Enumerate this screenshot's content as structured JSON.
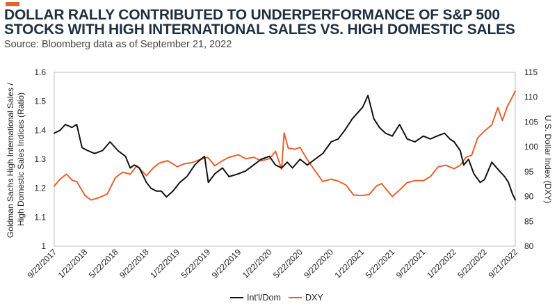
{
  "header": {
    "title": "DOLLAR RALLY CONTRIBUTED TO UNDERPERFORMANCE OF S&P 500 STOCKS WITH HIGH INTERNATIONAL SALES VS. HIGH DOMESTIC SALES",
    "subtitle": "Source: Bloomberg data as of September 21, 2022",
    "accent_color": "#e8612c"
  },
  "chart_data": {
    "type": "line",
    "title": "DOLLAR RALLY CONTRIBUTED TO UNDERPERFORMANCE OF S&P 500 STOCKS WITH HIGH INTERNATIONAL SALES VS. HIGH DOMESTIC SALES",
    "x_tick_labels": [
      "9/22/2017",
      "1/22/2018",
      "5/22/2018",
      "9/22/2018",
      "1/22/2019",
      "5/22/2019",
      "9/22/2019",
      "1/22/2020",
      "5/22/2020",
      "9/22/2020",
      "1/22/2021",
      "5/22/2021",
      "9/22/2021",
      "1/22/2022",
      "5/22/2022",
      "9/21/2022"
    ],
    "x_range": [
      "9/22/2017",
      "9/21/2022"
    ],
    "y_left": {
      "label": "Goldman Sachs High International Sales / High Domestic Sales Indices (Ratio)",
      "label_lines": [
        "Goldman Sachs High International Sales /",
        "High Domestic Sales Indices (Ratio)"
      ],
      "range": [
        1,
        1.6
      ],
      "ticks": [
        "1",
        "1.1",
        "1.2",
        "1.3",
        "1.4",
        "1.5",
        "1.6"
      ]
    },
    "y_right": {
      "label": "U.S. Dollar Index (DXY)",
      "range": [
        80,
        115
      ],
      "ticks": [
        "80",
        "85",
        "90",
        "95",
        "100",
        "105",
        "110",
        "115"
      ]
    },
    "grid": false,
    "legend_position": "bottom-center",
    "series": [
      {
        "name": "Int'l/Dom",
        "axis": "left",
        "color": "#111111",
        "points": [
          [
            "9/22/2017",
            1.39
          ],
          [
            "10/15/2017",
            1.4
          ],
          [
            "11/5/2017",
            1.42
          ],
          [
            "12/1/2017",
            1.41
          ],
          [
            "12/20/2017",
            1.42
          ],
          [
            "1/10/2018",
            1.34
          ],
          [
            "2/1/2018",
            1.33
          ],
          [
            "3/1/2018",
            1.32
          ],
          [
            "4/1/2018",
            1.33
          ],
          [
            "5/1/2018",
            1.36
          ],
          [
            "6/1/2018",
            1.33
          ],
          [
            "7/1/2018",
            1.31
          ],
          [
            "7/20/2018",
            1.27
          ],
          [
            "8/5/2018",
            1.28
          ],
          [
            "8/25/2018",
            1.27
          ],
          [
            "9/22/2018",
            1.22
          ],
          [
            "10/10/2018",
            1.2
          ],
          [
            "11/1/2018",
            1.19
          ],
          [
            "11/20/2018",
            1.19
          ],
          [
            "12/10/2018",
            1.17
          ],
          [
            "1/5/2019",
            1.19
          ],
          [
            "2/1/2019",
            1.22
          ],
          [
            "3/1/2019",
            1.24
          ],
          [
            "4/1/2019",
            1.28
          ],
          [
            "4/25/2019",
            1.3
          ],
          [
            "5/10/2019",
            1.31
          ],
          [
            "5/25/2019",
            1.22
          ],
          [
            "6/20/2019",
            1.25
          ],
          [
            "7/20/2019",
            1.27
          ],
          [
            "8/15/2019",
            1.24
          ],
          [
            "9/22/2019",
            1.25
          ],
          [
            "10/20/2019",
            1.26
          ],
          [
            "11/20/2019",
            1.28
          ],
          [
            "12/20/2019",
            1.3
          ],
          [
            "1/22/2020",
            1.31
          ],
          [
            "2/15/2020",
            1.28
          ],
          [
            "3/10/2020",
            1.27
          ],
          [
            "4/1/2020",
            1.29
          ],
          [
            "4/22/2020",
            1.27
          ],
          [
            "5/22/2020",
            1.3
          ],
          [
            "6/20/2020",
            1.28
          ],
          [
            "7/20/2020",
            1.3
          ],
          [
            "8/20/2020",
            1.32
          ],
          [
            "9/22/2020",
            1.36
          ],
          [
            "10/20/2020",
            1.37
          ],
          [
            "11/15/2020",
            1.4
          ],
          [
            "12/15/2020",
            1.44
          ],
          [
            "1/5/2021",
            1.46
          ],
          [
            "1/25/2021",
            1.48
          ],
          [
            "2/15/2021",
            1.52
          ],
          [
            "3/10/2021",
            1.44
          ],
          [
            "4/1/2021",
            1.41
          ],
          [
            "4/25/2021",
            1.39
          ],
          [
            "5/22/2021",
            1.38
          ],
          [
            "6/20/2021",
            1.42
          ],
          [
            "7/20/2021",
            1.37
          ],
          [
            "8/20/2021",
            1.36
          ],
          [
            "9/22/2021",
            1.38
          ],
          [
            "10/20/2021",
            1.37
          ],
          [
            "11/15/2021",
            1.38
          ],
          [
            "12/15/2021",
            1.39
          ],
          [
            "1/5/2022",
            1.37
          ],
          [
            "1/22/2022",
            1.36
          ],
          [
            "2/15/2022",
            1.33
          ],
          [
            "3/1/2022",
            1.28
          ],
          [
            "3/20/2022",
            1.3
          ],
          [
            "4/10/2022",
            1.25
          ],
          [
            "5/5/2022",
            1.22
          ],
          [
            "5/22/2022",
            1.23
          ],
          [
            "6/20/2022",
            1.29
          ],
          [
            "7/20/2022",
            1.26
          ],
          [
            "8/10/2022",
            1.24
          ],
          [
            "8/25/2022",
            1.22
          ],
          [
            "9/10/2022",
            1.18
          ],
          [
            "9/21/2022",
            1.16
          ]
        ]
      },
      {
        "name": "DXY",
        "axis": "right",
        "color": "#e8612c",
        "points": [
          [
            "9/22/2017",
            92.1
          ],
          [
            "10/15/2017",
            93.5
          ],
          [
            "11/10/2017",
            94.5
          ],
          [
            "12/1/2017",
            93.3
          ],
          [
            "12/20/2017",
            93.0
          ],
          [
            "1/22/2018",
            90.2
          ],
          [
            "2/15/2018",
            89.3
          ],
          [
            "3/20/2018",
            89.8
          ],
          [
            "4/20/2018",
            90.5
          ],
          [
            "5/22/2018",
            93.8
          ],
          [
            "6/20/2018",
            94.9
          ],
          [
            "7/20/2018",
            94.5
          ],
          [
            "8/15/2018",
            96.2
          ],
          [
            "9/22/2018",
            94.2
          ],
          [
            "10/20/2018",
            95.8
          ],
          [
            "11/15/2018",
            96.8
          ],
          [
            "12/15/2018",
            97.2
          ],
          [
            "1/22/2019",
            96.0
          ],
          [
            "2/20/2019",
            96.6
          ],
          [
            "3/20/2019",
            96.8
          ],
          [
            "4/20/2019",
            97.4
          ],
          [
            "5/22/2019",
            97.9
          ],
          [
            "6/20/2019",
            96.2
          ],
          [
            "7/20/2019",
            97.2
          ],
          [
            "8/15/2019",
            97.9
          ],
          [
            "9/22/2019",
            98.4
          ],
          [
            "10/20/2019",
            97.6
          ],
          [
            "11/20/2019",
            97.9
          ],
          [
            "12/20/2019",
            97.2
          ],
          [
            "1/22/2020",
            97.6
          ],
          [
            "2/15/2020",
            99.1
          ],
          [
            "3/10/2020",
            95.5
          ],
          [
            "3/20/2020",
            102.8
          ],
          [
            "4/5/2020",
            99.8
          ],
          [
            "5/1/2020",
            99.5
          ],
          [
            "5/22/2020",
            99.9
          ],
          [
            "6/20/2020",
            97.4
          ],
          [
            "7/20/2020",
            95.2
          ],
          [
            "8/20/2020",
            93.0
          ],
          [
            "9/22/2020",
            93.5
          ],
          [
            "10/20/2020",
            93.1
          ],
          [
            "11/20/2020",
            92.3
          ],
          [
            "12/20/2020",
            90.3
          ],
          [
            "1/22/2021",
            90.2
          ],
          [
            "2/20/2021",
            90.4
          ],
          [
            "3/20/2021",
            92.1
          ],
          [
            "4/10/2021",
            92.6
          ],
          [
            "5/22/2021",
            90.0
          ],
          [
            "6/20/2021",
            91.3
          ],
          [
            "7/20/2021",
            92.8
          ],
          [
            "8/20/2021",
            93.2
          ],
          [
            "9/22/2021",
            93.2
          ],
          [
            "10/20/2021",
            94.0
          ],
          [
            "11/20/2021",
            96.0
          ],
          [
            "12/20/2021",
            96.3
          ],
          [
            "1/22/2022",
            95.6
          ],
          [
            "2/15/2022",
            96.3
          ],
          [
            "3/10/2022",
            97.9
          ],
          [
            "4/1/2022",
            98.3
          ],
          [
            "4/25/2022",
            101.8
          ],
          [
            "5/22/2022",
            103.2
          ],
          [
            "6/20/2022",
            104.4
          ],
          [
            "7/14/2022",
            107.9
          ],
          [
            "8/1/2022",
            105.3
          ],
          [
            "8/20/2022",
            108.1
          ],
          [
            "9/5/2022",
            109.6
          ],
          [
            "9/21/2022",
            111.2
          ]
        ]
      }
    ]
  }
}
